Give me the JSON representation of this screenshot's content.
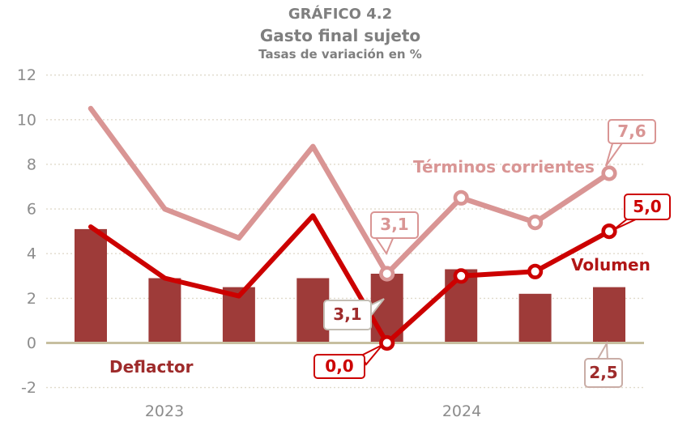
{
  "chart_data": {
    "type": "combo-bar-line",
    "title": "GRÁFICO 4.2",
    "subtitle": "Gasto final sujeto",
    "units_label": "Tasas de variación en %",
    "x_axis": {
      "group_labels": [
        "2023",
        "2024"
      ],
      "points_per_group": 4,
      "n_points": 8
    },
    "ylim": [
      -2,
      12
    ],
    "ytick_step": 2,
    "yticks": [
      12,
      10,
      8,
      6,
      4,
      2,
      0,
      -2
    ],
    "grid": "horizontal-dashed",
    "legend": "inline-series-labels",
    "series": [
      {
        "name": "Deflactor",
        "type": "bar",
        "color": "#9E3B39",
        "values": [
          5.1,
          2.9,
          2.5,
          2.9,
          3.1,
          3.3,
          2.2,
          2.5
        ]
      },
      {
        "name": "Términos corrientes",
        "type": "line",
        "color": "#D99594",
        "width": 6.5,
        "values": [
          10.5,
          6.0,
          4.7,
          8.8,
          3.1,
          6.5,
          5.4,
          7.6
        ],
        "markers_on_points": [
          4,
          5,
          6,
          7
        ]
      },
      {
        "name": "Volumen",
        "type": "line",
        "color": "#CC0000",
        "width": 6,
        "values": [
          5.2,
          2.9,
          2.1,
          5.7,
          0.0,
          3.0,
          3.2,
          5.0
        ],
        "markers_on_points": [
          4,
          5,
          6,
          7
        ]
      }
    ],
    "series_labels": [
      {
        "text": "Términos corrientes",
        "color": "#D99594"
      },
      {
        "text": "Volumen",
        "color": "#B11616"
      },
      {
        "text": "Deflactor",
        "color": "#9E2B2B"
      }
    ],
    "annotations": [
      {
        "id": "callout-corrientes-31",
        "series": "Términos corrientes",
        "point_index": 4,
        "text": "3,1",
        "border": "#D99594",
        "text_color": "#D99594"
      },
      {
        "id": "callout-deflactor-31",
        "series": "Deflactor",
        "point_index": 4,
        "text": "3,1",
        "border": "#C3BDB3",
        "text_color": "#9E2B2B"
      },
      {
        "id": "callout-volumen-00",
        "series": "Volumen",
        "point_index": 4,
        "text": "0,0",
        "border": "#CC0000",
        "text_color": "#CC0000"
      },
      {
        "id": "callout-corrientes-76",
        "series": "Términos corrientes",
        "point_index": 7,
        "text": "7,6",
        "border": "#D99594",
        "text_color": "#D99594"
      },
      {
        "id": "callout-volumen-50",
        "series": "Volumen",
        "point_index": 7,
        "text": "5,0",
        "border": "#CC0000",
        "text_color": "#CC0000"
      },
      {
        "id": "callout-deflactor-25",
        "series": "Deflactor",
        "point_index": 7,
        "text": "2,5",
        "border": "#C9ADA6",
        "text_color": "#9E2B2B"
      }
    ]
  },
  "colors": {
    "background": "#FFFFFF",
    "bar": "#9E3B39",
    "volumen_line": "#CC0000",
    "corrientes_line": "#D99594",
    "axis_line": "#C7BFA0",
    "gridline": "#E0DACB",
    "title_text": "#7F7F7F",
    "tick_text": "#8C8C8C"
  }
}
